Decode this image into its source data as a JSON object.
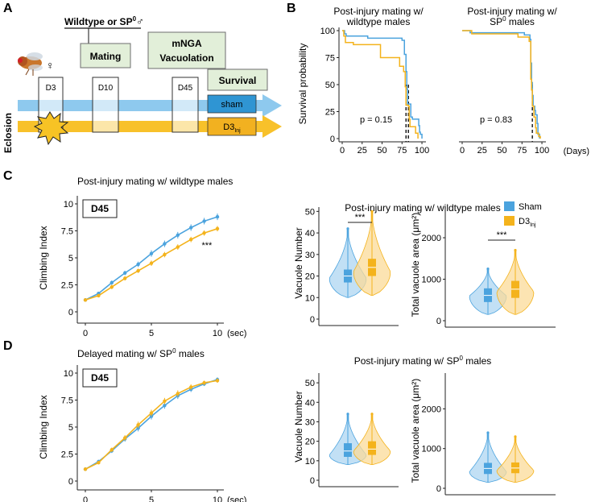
{
  "panel_letters": {
    "a": "A",
    "b": "B",
    "c": "C",
    "d": "D"
  },
  "panel_a": {
    "cross_label_main": "Wildtype or SP",
    "cross_label_sup": "0",
    "cross_label_symbol": "♂",
    "female_symbol": "♀",
    "mating_box": "Mating",
    "mnga_box_line1": "mNGA",
    "mnga_box_line2": "Vacuolation",
    "survival_box": "Survival",
    "eclosion_label": "Eclosion",
    "timepoints": [
      "D3",
      "D10",
      "D45"
    ],
    "sham_label": "sham",
    "inj_label_main": "D3",
    "inj_label_sub": "Inj",
    "colors": {
      "sham_arrow": "#8ec9ee",
      "inj_arrow": "#f8c12a",
      "box_fill": "#e2efd9",
      "sham_box": "#2f95d3",
      "inj_box": "#f2b120",
      "burst": "#f7c325"
    }
  },
  "colors": {
    "sham": "#4ba3de",
    "inj": "#f4b31c",
    "sham_fill": "#aed6f2",
    "inj_fill": "#fbdb98"
  },
  "chart_data": [
    {
      "id": "B-left",
      "type": "line",
      "subtype": "kaplan-meier",
      "title_line1": "Post-injury mating w/",
      "title_line2": "wildtype males",
      "ylabel": "Survival probability",
      "xlabel": "",
      "xlim": [
        0,
        105
      ],
      "ylim": [
        0,
        100
      ],
      "xticks": [
        "0",
        "25",
        "50",
        "75",
        "100"
      ],
      "yticks": [
        "0",
        "25",
        "50",
        "75",
        "100"
      ],
      "pvalue": "p = 0.15",
      "median_lines": [
        80,
        83
      ],
      "series": [
        {
          "name": "Sham",
          "points": [
            [
              0,
              100
            ],
            [
              3,
              97
            ],
            [
              5,
              95
            ],
            [
              30,
              95
            ],
            [
              32,
              93
            ],
            [
              65,
              93
            ],
            [
              75,
              91
            ],
            [
              78,
              78
            ],
            [
              80,
              62
            ],
            [
              81,
              46
            ],
            [
              82,
              32
            ],
            [
              86,
              20
            ],
            [
              88,
              18
            ],
            [
              96,
              12
            ],
            [
              97,
              6
            ],
            [
              98,
              4
            ],
            [
              100,
              0
            ]
          ]
        },
        {
          "name": "D3Inj",
          "points": [
            [
              0,
              100
            ],
            [
              2,
              95
            ],
            [
              4,
              89
            ],
            [
              12,
              89
            ],
            [
              14,
              87
            ],
            [
              46,
              87
            ],
            [
              48,
              75
            ],
            [
              70,
              75
            ],
            [
              72,
              67
            ],
            [
              75,
              67
            ],
            [
              77,
              62
            ],
            [
              79,
              48
            ],
            [
              80,
              31
            ],
            [
              83,
              30
            ],
            [
              84,
              18
            ],
            [
              85,
              11
            ],
            [
              92,
              5
            ],
            [
              95,
              0
            ]
          ]
        }
      ]
    },
    {
      "id": "B-right",
      "type": "line",
      "subtype": "kaplan-meier",
      "title_line1": "Post-injury mating w/",
      "title_line2_main": "SP",
      "title_line2_sup": "0",
      "title_line2_rest": " males",
      "xlabel": "(Days)",
      "xlim": [
        0,
        105
      ],
      "ylim": [
        0,
        100
      ],
      "xticks": [
        "0",
        "25",
        "50",
        "75",
        "100"
      ],
      "pvalue": "p = 0.83",
      "median_lines": [
        88
      ],
      "series": [
        {
          "name": "Sham",
          "points": [
            [
              0,
              100
            ],
            [
              8,
              100
            ],
            [
              10,
              98
            ],
            [
              75,
              98
            ],
            [
              78,
              96
            ],
            [
              85,
              92
            ],
            [
              86,
              70
            ],
            [
              87,
              52
            ],
            [
              88,
              40
            ],
            [
              89,
              30
            ],
            [
              91,
              26
            ],
            [
              92,
              22
            ],
            [
              94,
              14
            ],
            [
              95,
              4
            ],
            [
              97,
              0
            ]
          ]
        },
        {
          "name": "D3Inj",
          "points": [
            [
              0,
              100
            ],
            [
              10,
              100
            ],
            [
              12,
              97
            ],
            [
              65,
              97
            ],
            [
              70,
              94
            ],
            [
              80,
              94
            ],
            [
              84,
              90
            ],
            [
              86,
              55
            ],
            [
              87,
              45
            ],
            [
              88,
              30
            ],
            [
              90,
              20
            ],
            [
              92,
              10
            ],
            [
              93,
              5
            ],
            [
              96,
              2
            ],
            [
              98,
              0
            ]
          ]
        }
      ]
    },
    {
      "id": "C-climb",
      "type": "line",
      "title": "Post-injury mating w/ wildtype males",
      "badge": "D45",
      "ylabel": "Climbing Index",
      "xlim": [
        0,
        10
      ],
      "ylim": [
        0,
        10
      ],
      "xticks": [
        "0",
        "5",
        "10"
      ],
      "xtick_values": [
        0,
        5,
        10
      ],
      "xunit": "(sec)",
      "yticks": [
        "0",
        "2.5",
        "5",
        "7.5",
        "10"
      ],
      "ytick_values": [
        0,
        2.5,
        5,
        7.5,
        10
      ],
      "annotation": "***",
      "x": [
        0,
        1,
        2,
        3,
        4,
        5,
        6,
        7,
        8,
        9,
        10
      ],
      "series": [
        {
          "name": "Sham",
          "values": [
            1.1,
            1.7,
            2.7,
            3.6,
            4.4,
            5.4,
            6.3,
            7.1,
            7.8,
            8.4,
            8.8
          ],
          "errors": [
            0.1,
            0.15,
            0.2,
            0.2,
            0.25,
            0.3,
            0.3,
            0.3,
            0.3,
            0.3,
            0.3
          ]
        },
        {
          "name": "D3Inj",
          "values": [
            1.1,
            1.5,
            2.3,
            3.1,
            3.8,
            4.5,
            5.3,
            6.0,
            6.7,
            7.3,
            7.7
          ],
          "errors": [
            0.1,
            0.15,
            0.2,
            0.2,
            0.2,
            0.25,
            0.25,
            0.25,
            0.25,
            0.25,
            0.25
          ]
        }
      ]
    },
    {
      "id": "D-climb",
      "type": "line",
      "title_main": "Delayed mating w/ SP",
      "title_sup": "0",
      "title_rest": " males",
      "badge": "D45",
      "ylabel": "Climbing Index",
      "xlim": [
        0,
        10
      ],
      "ylim": [
        0,
        10
      ],
      "xticks": [
        "0",
        "5",
        "10"
      ],
      "xtick_values": [
        0,
        5,
        10
      ],
      "xunit": "(sec)",
      "yticks": [
        "0",
        "2.5",
        "5",
        "7.5",
        "10"
      ],
      "ytick_values": [
        0,
        2.5,
        5,
        7.5,
        10
      ],
      "x": [
        0,
        1,
        2,
        3,
        4,
        5,
        6,
        7,
        8,
        9,
        10
      ],
      "series": [
        {
          "name": "Sham",
          "values": [
            1.1,
            1.8,
            2.8,
            3.9,
            4.9,
            6.0,
            7.0,
            7.9,
            8.5,
            9.0,
            9.4
          ],
          "errors": [
            0.1,
            0.15,
            0.2,
            0.25,
            0.3,
            0.3,
            0.3,
            0.3,
            0.25,
            0.2,
            0.2
          ]
        },
        {
          "name": "D3Inj",
          "values": [
            1.1,
            1.7,
            2.9,
            4.0,
            5.2,
            6.3,
            7.4,
            8.1,
            8.7,
            9.1,
            9.3
          ],
          "errors": [
            0.1,
            0.15,
            0.2,
            0.25,
            0.3,
            0.3,
            0.3,
            0.3,
            0.25,
            0.2,
            0.2
          ]
        }
      ]
    },
    {
      "id": "C-violin-number",
      "type": "violin",
      "group_title": "Post-injury mating w/ wildtype males",
      "ylabel": "Vacuole Number",
      "ylim": [
        0,
        52
      ],
      "yticks": [
        "0",
        "10",
        "20",
        "30",
        "40",
        "50"
      ],
      "ytick_values": [
        0,
        10,
        20,
        30,
        40,
        50
      ],
      "significance": "***",
      "groups": [
        {
          "name": "Sham",
          "min": 10,
          "q1": 17,
          "median": 20,
          "q3": 23,
          "max": 42,
          "mode": 19
        },
        {
          "name": "D3Inj",
          "min": 11,
          "q1": 20,
          "median": 24,
          "q3": 28,
          "max": 50,
          "mode": 22
        }
      ]
    },
    {
      "id": "C-violin-area",
      "type": "violin",
      "ylabel": "Total vacuole area (μm²)",
      "ylim": [
        0,
        2700
      ],
      "yticks": [
        "0",
        "1000",
        "2000"
      ],
      "ytick_values": [
        0,
        1000,
        2000
      ],
      "significance": "***",
      "legend": [
        {
          "name": "Sham"
        },
        {
          "name_main": "D3",
          "name_sub": "Inj"
        }
      ],
      "groups": [
        {
          "name": "Sham",
          "min": 150,
          "q1": 450,
          "median": 610,
          "q3": 780,
          "max": 1250,
          "mode": 600
        },
        {
          "name": "D3Inj",
          "min": 150,
          "q1": 550,
          "median": 760,
          "q3": 960,
          "max": 1700,
          "mode": 700
        }
      ]
    },
    {
      "id": "D-violin-number",
      "type": "violin",
      "group_title": "Post-injury mating w/ SP",
      "group_title_sup": "0",
      "group_title_rest": " males",
      "ylabel": "Vacuole Number",
      "ylim": [
        0,
        55
      ],
      "yticks": [
        "0",
        "10",
        "20",
        "30",
        "40",
        "50"
      ],
      "ytick_values": [
        0,
        10,
        20,
        30,
        40,
        50
      ],
      "groups": [
        {
          "name": "Sham",
          "min": 8,
          "q1": 12,
          "median": 15,
          "q3": 19,
          "max": 34,
          "mode": 13
        },
        {
          "name": "D3Inj",
          "min": 8,
          "q1": 13,
          "median": 16,
          "q3": 20,
          "max": 34,
          "mode": 15
        }
      ]
    },
    {
      "id": "D-violin-area",
      "type": "violin",
      "ylabel": "Total vacuole area (μm²)",
      "ylim": [
        0,
        2900
      ],
      "yticks": [
        "0",
        "1000",
        "2000"
      ],
      "ytick_values": [
        0,
        1000,
        2000
      ],
      "groups": [
        {
          "name": "Sham",
          "min": 150,
          "q1": 360,
          "median": 500,
          "q3": 640,
          "max": 1400,
          "mode": 420
        },
        {
          "name": "D3Inj",
          "min": 150,
          "q1": 380,
          "median": 510,
          "q3": 650,
          "max": 1300,
          "mode": 450
        }
      ]
    }
  ]
}
